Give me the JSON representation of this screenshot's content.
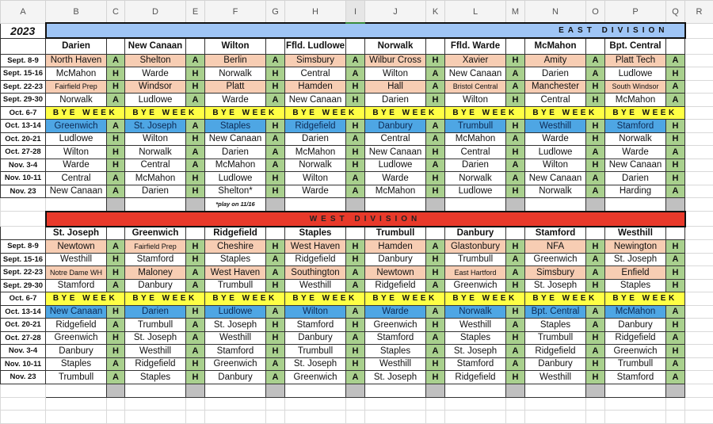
{
  "columns": [
    "A",
    "B",
    "C",
    "D",
    "E",
    "F",
    "G",
    "H",
    "I",
    "J",
    "K",
    "L",
    "M",
    "N",
    "O",
    "P",
    "Q",
    "R"
  ],
  "year": "2023",
  "bye_label": "BYE WEEK",
  "dates": [
    "Sept. 8-9",
    "Sept. 15-16",
    "Sept. 22-23",
    "Sept. 29-30",
    "Oct. 6-7",
    "Oct. 13-14",
    "Oct. 20-21",
    "Oct. 27-28",
    "Nov. 3-4",
    "Nov. 10-11",
    "Nov. 23"
  ],
  "colors": {
    "east_banner": "#9fc5f5",
    "west_banner": "#e8392a",
    "bye": "#ffff44",
    "non_league": "#f7cdb3",
    "crossover": "#4ea6e4",
    "home_away": "#a9d08e"
  },
  "east": {
    "title": "EAST DIVISION",
    "footnote": "*play on 11/16",
    "teams": [
      {
        "name": "Darien",
        "games": [
          [
            "North Haven",
            "A"
          ],
          [
            "McMahon",
            "H"
          ],
          [
            "Fairfield Prep",
            "H"
          ],
          [
            "Norwalk",
            "A"
          ],
          null,
          [
            "Greenwich",
            "A"
          ],
          [
            "Ludlowe",
            "H"
          ],
          [
            "Wilton",
            "H"
          ],
          [
            "Warde",
            "H"
          ],
          [
            "Central",
            "A"
          ],
          [
            "New Canaan",
            "A"
          ]
        ]
      },
      {
        "name": "New Canaan",
        "games": [
          [
            "Shelton",
            "A"
          ],
          [
            "Warde",
            "H"
          ],
          [
            "Windsor",
            "H"
          ],
          [
            "Ludlowe",
            "A"
          ],
          null,
          [
            "St. Joseph",
            "A"
          ],
          [
            "Wilton",
            "H"
          ],
          [
            "Norwalk",
            "A"
          ],
          [
            "Central",
            "A"
          ],
          [
            "McMahon",
            "H"
          ],
          [
            "Darien",
            "H"
          ]
        ]
      },
      {
        "name": "Wilton",
        "games": [
          [
            "Berlin",
            "A"
          ],
          [
            "Norwalk",
            "H"
          ],
          [
            "Platt",
            "H"
          ],
          [
            "Warde",
            "A"
          ],
          null,
          [
            "Staples",
            "H"
          ],
          [
            "New Canaan",
            "A"
          ],
          [
            "Darien",
            "A"
          ],
          [
            "McMahon",
            "A"
          ],
          [
            "Ludlowe",
            "H"
          ],
          [
            "Shelton*",
            "H"
          ]
        ]
      },
      {
        "name": "Ffld. Ludlowe",
        "games": [
          [
            "Simsbury",
            "A"
          ],
          [
            "Central",
            "A"
          ],
          [
            "Hamden",
            "H"
          ],
          [
            "New Canaan",
            "H"
          ],
          null,
          [
            "Ridgefield",
            "H"
          ],
          [
            "Darien",
            "A"
          ],
          [
            "McMahon",
            "H"
          ],
          [
            "Norwalk",
            "H"
          ],
          [
            "Wilton",
            "A"
          ],
          [
            "Warde",
            "A"
          ]
        ]
      },
      {
        "name": "Norwalk",
        "games": [
          [
            "Wilbur Cross",
            "H"
          ],
          [
            "Wilton",
            "A"
          ],
          [
            "Hall",
            "A"
          ],
          [
            "Darien",
            "H"
          ],
          null,
          [
            "Danbury",
            "A"
          ],
          [
            "Central",
            "A"
          ],
          [
            "New Canaan",
            "H"
          ],
          [
            "Ludlowe",
            "A"
          ],
          [
            "Warde",
            "H"
          ],
          [
            "McMahon",
            "H"
          ]
        ]
      },
      {
        "name": "Ffld. Warde",
        "games": [
          [
            "Xavier",
            "H"
          ],
          [
            "New Canaan",
            "A"
          ],
          [
            "Bristol Central",
            "A"
          ],
          [
            "Wilton",
            "H"
          ],
          null,
          [
            "Trumbull",
            "H"
          ],
          [
            "McMahon",
            "A"
          ],
          [
            "Central",
            "H"
          ],
          [
            "Darien",
            "A"
          ],
          [
            "Norwalk",
            "A"
          ],
          [
            "Ludlowe",
            "H"
          ]
        ]
      },
      {
        "name": "McMahon",
        "games": [
          [
            "Amity",
            "A"
          ],
          [
            "Darien",
            "A"
          ],
          [
            "Manchester",
            "H"
          ],
          [
            "Central",
            "H"
          ],
          null,
          [
            "Westhill",
            "H"
          ],
          [
            "Warde",
            "H"
          ],
          [
            "Ludlowe",
            "A"
          ],
          [
            "Wilton",
            "H"
          ],
          [
            "New Canaan",
            "A"
          ],
          [
            "Norwalk",
            "A"
          ]
        ]
      },
      {
        "name": "Bpt. Central",
        "games": [
          [
            "Platt Tech",
            "A"
          ],
          [
            "Ludlowe",
            "H"
          ],
          [
            "South Windsor",
            "A"
          ],
          [
            "McMahon",
            "A"
          ],
          null,
          [
            "Stamford",
            "H"
          ],
          [
            "Norwalk",
            "H"
          ],
          [
            "Warde",
            "A"
          ],
          [
            "New Canaan",
            "H"
          ],
          [
            "Darien",
            "H"
          ],
          [
            "Harding",
            "A"
          ]
        ]
      }
    ]
  },
  "west": {
    "title": "WEST DIVISION",
    "teams": [
      {
        "name": "St. Joseph",
        "games": [
          [
            "Newtown",
            "A"
          ],
          [
            "Westhill",
            "H"
          ],
          [
            "Notre Dame WH",
            "H"
          ],
          [
            "Stamford",
            "A"
          ],
          null,
          [
            "New Canaan",
            "H"
          ],
          [
            "Ridgefield",
            "A"
          ],
          [
            "Greenwich",
            "H"
          ],
          [
            "Danbury",
            "H"
          ],
          [
            "Staples",
            "A"
          ],
          [
            "Trumbull",
            "A"
          ]
        ]
      },
      {
        "name": "Greenwich",
        "games": [
          [
            "Fairfield Prep",
            "H"
          ],
          [
            "Stamford",
            "H"
          ],
          [
            "Maloney",
            "A"
          ],
          [
            "Danbury",
            "A"
          ],
          null,
          [
            "Darien",
            "H"
          ],
          [
            "Trumbull",
            "A"
          ],
          [
            "St. Joseph",
            "A"
          ],
          [
            "Westhill",
            "A"
          ],
          [
            "Ridgefield",
            "H"
          ],
          [
            "Staples",
            "H"
          ]
        ]
      },
      {
        "name": "Ridgefield",
        "games": [
          [
            "Cheshire",
            "H"
          ],
          [
            "Staples",
            "A"
          ],
          [
            "West Haven",
            "A"
          ],
          [
            "Trumbull",
            "H"
          ],
          null,
          [
            "Ludlowe",
            "A"
          ],
          [
            "St. Joseph",
            "H"
          ],
          [
            "Westhill",
            "H"
          ],
          [
            "Stamford",
            "H"
          ],
          [
            "Greenwich",
            "A"
          ],
          [
            "Danbury",
            "A"
          ]
        ]
      },
      {
        "name": "Staples",
        "games": [
          [
            "West Haven",
            "H"
          ],
          [
            "Ridgefield",
            "H"
          ],
          [
            "Southington",
            "A"
          ],
          [
            "Westhill",
            "A"
          ],
          null,
          [
            "Wilton",
            "A"
          ],
          [
            "Stamford",
            "H"
          ],
          [
            "Danbury",
            "A"
          ],
          [
            "Trumbull",
            "H"
          ],
          [
            "St. Joseph",
            "H"
          ],
          [
            "Greenwich",
            "A"
          ]
        ]
      },
      {
        "name": "Trumbull",
        "games": [
          [
            "Hamden",
            "A"
          ],
          [
            "Danbury",
            "H"
          ],
          [
            "Newtown",
            "H"
          ],
          [
            "Ridgefield",
            "A"
          ],
          null,
          [
            "Warde",
            "A"
          ],
          [
            "Greenwich",
            "H"
          ],
          [
            "Stamford",
            "A"
          ],
          [
            "Staples",
            "A"
          ],
          [
            "Westhill",
            "H"
          ],
          [
            "St. Joseph",
            "H"
          ]
        ]
      },
      {
        "name": "Danbury",
        "games": [
          [
            "Glastonbury",
            "H"
          ],
          [
            "Trumbull",
            "A"
          ],
          [
            "East Hartford",
            "A"
          ],
          [
            "Greenwich",
            "H"
          ],
          null,
          [
            "Norwalk",
            "H"
          ],
          [
            "Westhill",
            "A"
          ],
          [
            "Staples",
            "H"
          ],
          [
            "St. Joseph",
            "A"
          ],
          [
            "Stamford",
            "A"
          ],
          [
            "Ridgefield",
            "H"
          ]
        ]
      },
      {
        "name": "Stamford",
        "games": [
          [
            "NFA",
            "H"
          ],
          [
            "Greenwich",
            "A"
          ],
          [
            "Simsbury",
            "A"
          ],
          [
            "St. Joseph",
            "H"
          ],
          null,
          [
            "Bpt. Central",
            "A"
          ],
          [
            "Staples",
            "A"
          ],
          [
            "Trumbull",
            "H"
          ],
          [
            "Ridgefield",
            "A"
          ],
          [
            "Danbury",
            "H"
          ],
          [
            "Westhill",
            "H"
          ]
        ]
      },
      {
        "name": "Westhill",
        "games": [
          [
            "Newington",
            "H"
          ],
          [
            "St. Joseph",
            "A"
          ],
          [
            "Enfield",
            "H"
          ],
          [
            "Staples",
            "H"
          ],
          null,
          [
            "McMahon",
            "A"
          ],
          [
            "Danbury",
            "H"
          ],
          [
            "Ridgefield",
            "A"
          ],
          [
            "Greenwich",
            "H"
          ],
          [
            "Trumbull",
            "A"
          ],
          [
            "Stamford",
            "A"
          ]
        ]
      }
    ]
  }
}
